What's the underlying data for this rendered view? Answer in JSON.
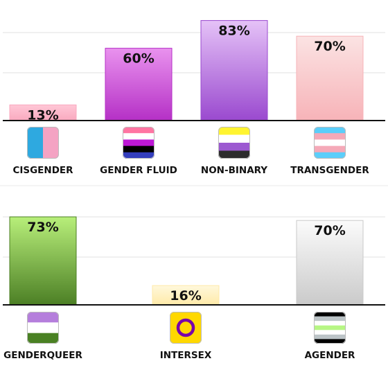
{
  "chart_data": [
    {
      "type": "bar",
      "ylim": [
        0,
        100
      ],
      "grid": true,
      "categories": [
        "CISGENDER",
        "GENDER FLUID",
        "NON-BINARY",
        "TRANSGENDER"
      ],
      "values": [
        13,
        60,
        83,
        70
      ],
      "data_labels": [
        "13%",
        "60%",
        "83%",
        "70%"
      ],
      "icons": [
        "cisgender-flag-icon",
        "genderfluid-flag-icon",
        "nonbinary-flag-icon",
        "transgender-flag-icon"
      ]
    },
    {
      "type": "bar",
      "ylim": [
        0,
        100
      ],
      "grid": true,
      "categories": [
        "GENDERQUEER",
        "INTERSEX",
        "AGENDER"
      ],
      "values": [
        73,
        16,
        70
      ],
      "data_labels": [
        "73%",
        "16%",
        "70%"
      ],
      "icons": [
        "genderqueer-flag-icon",
        "intersex-flag-icon",
        "agender-flag-icon"
      ]
    }
  ],
  "colors": {
    "cisgender": [
      "#ffc7d6",
      "#f9a9bf"
    ],
    "gender_fluid": [
      "#e992ee",
      "#b530c6"
    ],
    "non_binary": [
      "#e5c2f7",
      "#9a49cf"
    ],
    "transgender": [
      "#fbe3e3",
      "#f7b3b8"
    ],
    "genderqueer": [
      "#b8ef7a",
      "#4c7f25"
    ],
    "intersex": [
      "#fff8dc",
      "#ffeaa8"
    ],
    "agender": [
      "#fbfbfb",
      "#cacaca"
    ]
  },
  "flags": {
    "cisgender": [
      "#2ea9e0",
      "#f4a3c3"
    ],
    "gender_fluid": [
      "#ff75a2",
      "#ffffff",
      "#be18d6",
      "#000000",
      "#333ebd"
    ],
    "non_binary": [
      "#fff430",
      "#ffffff",
      "#9c59d1",
      "#2c2c2c"
    ],
    "transgender": [
      "#5bcefa",
      "#f5a9b8",
      "#ffffff",
      "#f5a9b8",
      "#5bcefa"
    ],
    "genderqueer": [
      "#b57edc",
      "#ffffff",
      "#4a8123"
    ],
    "intersex": {
      "background": "#ffd800",
      "ring": "#7902aa"
    },
    "agender": [
      "#000000",
      "#bcc4c7",
      "#ffffff",
      "#b7f684",
      "#ffffff",
      "#bcc4c7",
      "#000000"
    ]
  }
}
